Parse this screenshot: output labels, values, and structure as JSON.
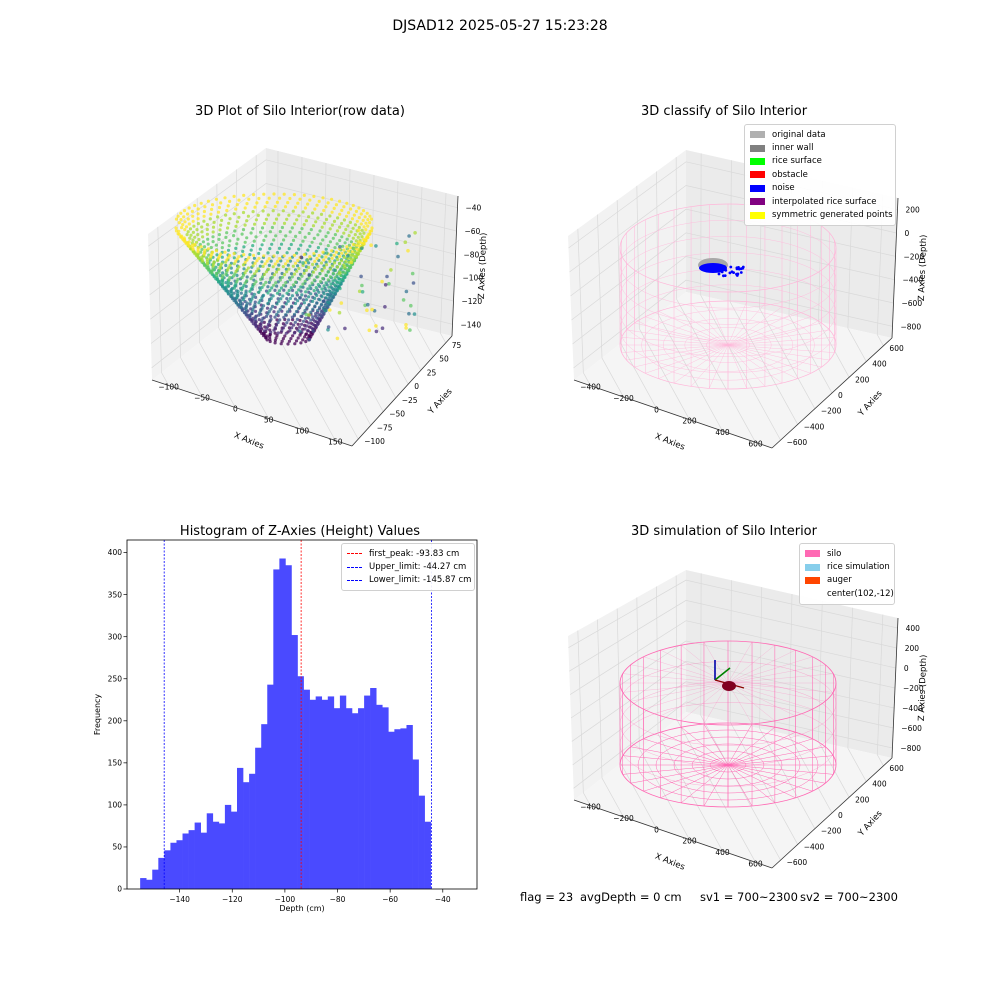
{
  "figure": {
    "suptitle": "DJSAD12 2025-05-27 15:23:28",
    "footer": {
      "flag": "flag = 23",
      "avg_depth": "avgDepth = 0 cm",
      "sv1": "sv1 = 700~2300",
      "sv2": "sv2 = 700~2300"
    }
  },
  "chart_data": [
    {
      "type": "scatter",
      "projection": "3d",
      "title": "3D Plot of Silo Interior(row data)",
      "xlabel": "X Axies",
      "ylabel": "Y Axies",
      "zlabel": "Z Axies (Depth)",
      "xticks": [
        "−100",
        "−50",
        "0",
        "50",
        "100",
        "150"
      ],
      "yticks": [
        "−100",
        "−75",
        "−50",
        "−25",
        "0",
        "25",
        "50",
        "75"
      ],
      "zticks": [
        "−40",
        "−60",
        "−80",
        "−100",
        "−120",
        "−140"
      ],
      "xlim": [
        -130,
        180
      ],
      "ylim": [
        -100,
        90
      ],
      "zlim": [
        -150,
        -30
      ],
      "colormap": "viridis",
      "grid": true
    },
    {
      "type": "scatter",
      "projection": "3d",
      "title": "3D classify of Silo Interior",
      "xlabel": "X Axies",
      "ylabel": "Y Axies",
      "zlabel": "Z Axies (Depth)",
      "xticks": [
        "−400",
        "−200",
        "0",
        "200",
        "400",
        "600"
      ],
      "yticks": [
        "−600",
        "−400",
        "−200",
        "0",
        "200",
        "400",
        "600"
      ],
      "zticks": [
        "200",
        "0",
        "−200",
        "−400",
        "−600",
        "−800"
      ],
      "legend_position": "top-right",
      "legend": [
        {
          "label": "original data",
          "color": "#b0b0b0"
        },
        {
          "label": "inner wall",
          "color": "#808080"
        },
        {
          "label": "rice surface",
          "color": "#00ff00"
        },
        {
          "label": "obstacle",
          "color": "#ff0000"
        },
        {
          "label": "noise",
          "color": "#0000ff"
        },
        {
          "label": "interpolated rice surface",
          "color": "#800080"
        },
        {
          "label": "symmetric generated points",
          "color": "#ffff00"
        }
      ],
      "grid": true
    },
    {
      "type": "bar",
      "title": "Histogram of Z-Axies (Height) Values",
      "xlabel": "Depth (cm)",
      "ylabel": "Frequency",
      "xlim": [
        -160,
        -27
      ],
      "ylim": [
        0,
        415
      ],
      "xticks": [
        -140,
        -120,
        -100,
        -80,
        -60,
        -40
      ],
      "xtick_labels": [
        "−140",
        "−120",
        "−100",
        "−80",
        "−60",
        "−40"
      ],
      "yticks": [
        0,
        50,
        100,
        150,
        200,
        250,
        300,
        350,
        400
      ],
      "bin_start": -155,
      "bin_width": 2.3,
      "bar_color": "#4a4aff",
      "values": [
        13,
        11,
        23,
        37,
        46,
        55,
        58,
        66,
        70,
        79,
        67,
        90,
        80,
        78,
        100,
        92,
        144,
        127,
        137,
        168,
        196,
        243,
        380,
        393,
        385,
        302,
        253,
        237,
        225,
        229,
        225,
        229,
        215,
        230,
        215,
        209,
        215,
        230,
        239,
        219,
        216,
        187,
        190,
        191,
        195,
        154,
        111,
        80
      ],
      "vlines": [
        {
          "label": "first_peak: -93.83 cm",
          "x": -93.83,
          "color": "#ff0000"
        },
        {
          "label": "Upper_limit: -44.27 cm",
          "x": -44.27,
          "color": "#0000ff"
        },
        {
          "label": "Lower_limit: -145.87 cm",
          "x": -145.87,
          "color": "#0000ff"
        }
      ],
      "legend_position": "top-right"
    },
    {
      "type": "scatter",
      "projection": "3d",
      "title": "3D simulation of Silo Interior",
      "xlabel": "X Axies",
      "ylabel": "Y Axies",
      "zlabel": "Z Axies (Depth)",
      "xticks": [
        "−400",
        "−200",
        "0",
        "200",
        "400",
        "600"
      ],
      "yticks": [
        "−600",
        "−400",
        "−200",
        "0",
        "200",
        "400",
        "600"
      ],
      "zticks": [
        "400",
        "200",
        "0",
        "−200",
        "−400",
        "−600",
        "−800"
      ],
      "legend_position": "top-right",
      "legend": [
        {
          "label": "silo",
          "color": "#ff69b4"
        },
        {
          "label": "rice simulation",
          "color": "#87ceeb"
        },
        {
          "label": "auger",
          "color": "#ff4500"
        },
        {
          "label": "center(102,-12)",
          "color": ""
        }
      ],
      "grid": true
    }
  ]
}
